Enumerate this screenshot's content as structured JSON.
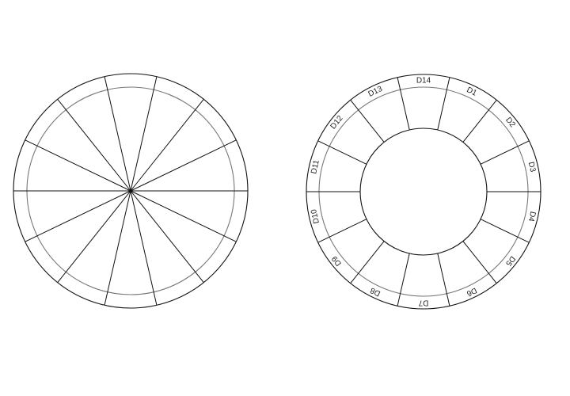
{
  "left_wheel": {
    "sections": 14
  },
  "right_wheel": {
    "labels": [
      "D1",
      "D2",
      "D3",
      "D4",
      "D5",
      "D6",
      "D7",
      "D8",
      "D9",
      "D10",
      "D11",
      "D12",
      "D13",
      "D14"
    ]
  },
  "colors": {
    "line": "#111111",
    "inner_ring": "#777777",
    "background": "#ffffff"
  }
}
